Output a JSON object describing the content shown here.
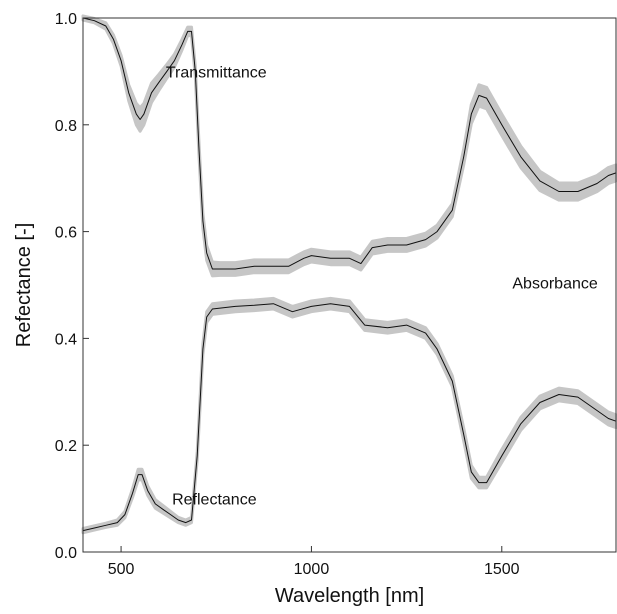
{
  "chart_data": {
    "type": "line",
    "title": "",
    "xlabel": "Wavelength [nm]",
    "ylabel": "Refectance [-]",
    "xlim": [
      400,
      1800
    ],
    "ylim": [
      0.0,
      1.0
    ],
    "x_ticks": [
      {
        "value": 500,
        "label": "500"
      },
      {
        "value": 1000,
        "label": "1000"
      },
      {
        "value": 1500,
        "label": "1500"
      }
    ],
    "y_ticks": [
      {
        "value": 0.0,
        "label": "0.0"
      },
      {
        "value": 0.2,
        "label": "0.2"
      },
      {
        "value": 0.4,
        "label": "0.4"
      },
      {
        "value": 0.6,
        "label": "0.6"
      },
      {
        "value": 0.8,
        "label": "0.8"
      },
      {
        "value": 1.0,
        "label": "1.0"
      }
    ],
    "grid": false,
    "legend": "none",
    "annotations": [
      {
        "text": "Transmittance",
        "x": 750,
        "y": 0.9
      },
      {
        "text": "Absorbance",
        "x": 1640,
        "y": 0.505
      },
      {
        "text": "Reflectance",
        "x": 745,
        "y": 0.1
      }
    ],
    "series": [
      {
        "line_color": "#111111",
        "band_color": "#c6c6c6",
        "points": [
          [
            400,
            1.0,
            0.004
          ],
          [
            430,
            0.995,
            0.004
          ],
          [
            460,
            0.985,
            0.006
          ],
          [
            480,
            0.96,
            0.008
          ],
          [
            500,
            0.92,
            0.01
          ],
          [
            520,
            0.86,
            0.015
          ],
          [
            540,
            0.82,
            0.02
          ],
          [
            550,
            0.81,
            0.022
          ],
          [
            560,
            0.82,
            0.02
          ],
          [
            580,
            0.86,
            0.018
          ],
          [
            600,
            0.88,
            0.015
          ],
          [
            620,
            0.9,
            0.013
          ],
          [
            640,
            0.92,
            0.012
          ],
          [
            660,
            0.95,
            0.01
          ],
          [
            675,
            0.975,
            0.008
          ],
          [
            685,
            0.975,
            0.008
          ],
          [
            695,
            0.9,
            0.01
          ],
          [
            705,
            0.75,
            0.012
          ],
          [
            715,
            0.62,
            0.014
          ],
          [
            725,
            0.56,
            0.014
          ],
          [
            740,
            0.53,
            0.013
          ],
          [
            760,
            0.53,
            0.012
          ],
          [
            800,
            0.53,
            0.012
          ],
          [
            850,
            0.535,
            0.012
          ],
          [
            900,
            0.535,
            0.012
          ],
          [
            940,
            0.535,
            0.012
          ],
          [
            980,
            0.55,
            0.012
          ],
          [
            1000,
            0.555,
            0.012
          ],
          [
            1050,
            0.55,
            0.012
          ],
          [
            1100,
            0.55,
            0.012
          ],
          [
            1130,
            0.54,
            0.012
          ],
          [
            1160,
            0.57,
            0.012
          ],
          [
            1200,
            0.575,
            0.012
          ],
          [
            1250,
            0.575,
            0.012
          ],
          [
            1300,
            0.585,
            0.012
          ],
          [
            1330,
            0.6,
            0.012
          ],
          [
            1370,
            0.64,
            0.012
          ],
          [
            1400,
            0.74,
            0.015
          ],
          [
            1420,
            0.82,
            0.018
          ],
          [
            1440,
            0.855,
            0.02
          ],
          [
            1460,
            0.85,
            0.02
          ],
          [
            1500,
            0.8,
            0.02
          ],
          [
            1550,
            0.74,
            0.02
          ],
          [
            1600,
            0.695,
            0.018
          ],
          [
            1650,
            0.675,
            0.016
          ],
          [
            1700,
            0.675,
            0.016
          ],
          [
            1750,
            0.69,
            0.015
          ],
          [
            1780,
            0.705,
            0.015
          ],
          [
            1800,
            0.71,
            0.015
          ]
        ]
      },
      {
        "line_color": "#111111",
        "band_color": "#c6c6c6",
        "points": [
          [
            400,
            0.04,
            0.004
          ],
          [
            430,
            0.045,
            0.004
          ],
          [
            460,
            0.05,
            0.004
          ],
          [
            490,
            0.055,
            0.005
          ],
          [
            510,
            0.07,
            0.006
          ],
          [
            530,
            0.11,
            0.008
          ],
          [
            545,
            0.145,
            0.01
          ],
          [
            555,
            0.145,
            0.01
          ],
          [
            570,
            0.115,
            0.009
          ],
          [
            590,
            0.09,
            0.008
          ],
          [
            610,
            0.08,
            0.007
          ],
          [
            630,
            0.07,
            0.006
          ],
          [
            650,
            0.06,
            0.005
          ],
          [
            670,
            0.055,
            0.005
          ],
          [
            685,
            0.06,
            0.005
          ],
          [
            700,
            0.18,
            0.008
          ],
          [
            715,
            0.38,
            0.01
          ],
          [
            725,
            0.44,
            0.01
          ],
          [
            740,
            0.455,
            0.01
          ],
          [
            800,
            0.46,
            0.01
          ],
          [
            850,
            0.462,
            0.01
          ],
          [
            900,
            0.465,
            0.01
          ],
          [
            950,
            0.45,
            0.01
          ],
          [
            1000,
            0.46,
            0.01
          ],
          [
            1050,
            0.465,
            0.01
          ],
          [
            1100,
            0.46,
            0.01
          ],
          [
            1140,
            0.425,
            0.01
          ],
          [
            1200,
            0.42,
            0.01
          ],
          [
            1250,
            0.425,
            0.01
          ],
          [
            1300,
            0.41,
            0.01
          ],
          [
            1330,
            0.38,
            0.01
          ],
          [
            1370,
            0.32,
            0.01
          ],
          [
            1400,
            0.22,
            0.012
          ],
          [
            1420,
            0.15,
            0.012
          ],
          [
            1440,
            0.13,
            0.01
          ],
          [
            1460,
            0.13,
            0.01
          ],
          [
            1500,
            0.18,
            0.012
          ],
          [
            1550,
            0.24,
            0.012
          ],
          [
            1600,
            0.28,
            0.012
          ],
          [
            1650,
            0.295,
            0.012
          ],
          [
            1700,
            0.29,
            0.012
          ],
          [
            1750,
            0.265,
            0.012
          ],
          [
            1780,
            0.25,
            0.012
          ],
          [
            1800,
            0.245,
            0.012
          ]
        ]
      }
    ]
  }
}
